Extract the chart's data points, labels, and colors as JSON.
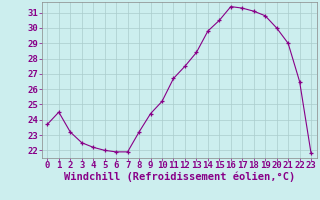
{
  "x": [
    0,
    1,
    2,
    3,
    4,
    5,
    6,
    7,
    8,
    9,
    10,
    11,
    12,
    13,
    14,
    15,
    16,
    17,
    18,
    19,
    20,
    21,
    22,
    23
  ],
  "y": [
    23.7,
    24.5,
    23.2,
    22.5,
    22.2,
    22.0,
    21.9,
    21.9,
    23.2,
    24.4,
    25.2,
    26.7,
    27.5,
    28.4,
    29.8,
    30.5,
    31.4,
    31.3,
    31.1,
    30.8,
    30.0,
    29.0,
    26.5,
    21.8
  ],
  "line_color": "#880088",
  "marker": "+",
  "bg_color": "#cceeee",
  "grid_color": "#aacccc",
  "xlabel": "Windchill (Refroidissement éolien,°C)",
  "xlabel_color": "#880088",
  "tick_color": "#880088",
  "spine_color": "#888888",
  "ylim": [
    21.5,
    31.7
  ],
  "xlim": [
    -0.5,
    23.5
  ],
  "yticks": [
    22,
    23,
    24,
    25,
    26,
    27,
    28,
    29,
    30,
    31
  ],
  "xticks": [
    0,
    1,
    2,
    3,
    4,
    5,
    6,
    7,
    8,
    9,
    10,
    11,
    12,
    13,
    14,
    15,
    16,
    17,
    18,
    19,
    20,
    21,
    22,
    23
  ],
  "tick_fontsize": 6.5,
  "xlabel_fontsize": 7.5
}
